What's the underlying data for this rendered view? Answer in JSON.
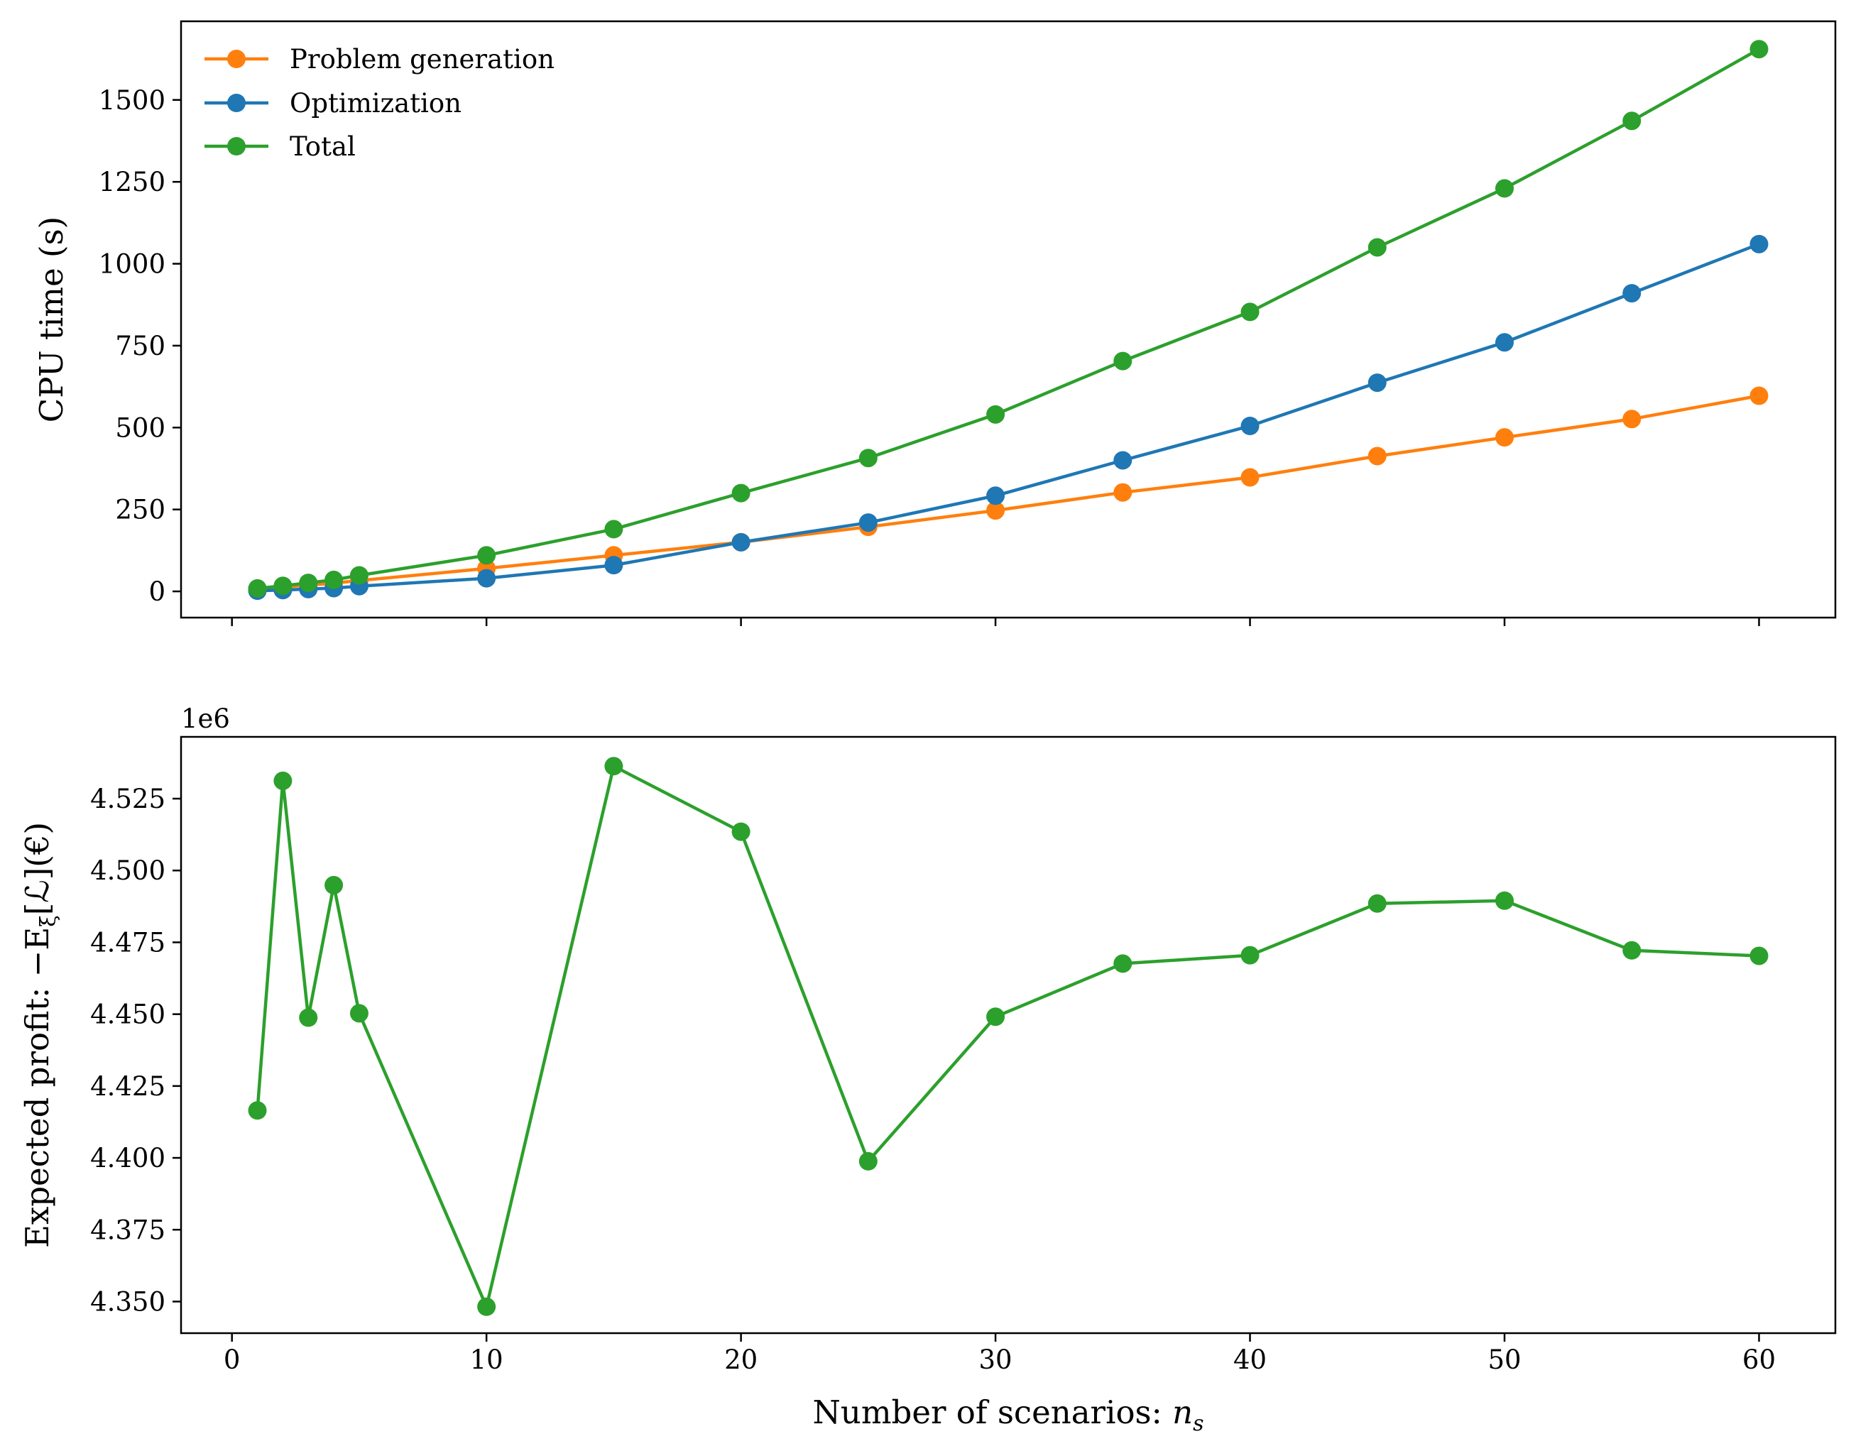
{
  "chart_data": [
    {
      "type": "line",
      "ylabel": "CPU time (s)",
      "xlabel": "",
      "x": [
        1,
        2,
        3,
        4,
        5,
        10,
        15,
        20,
        25,
        30,
        35,
        40,
        45,
        50,
        55,
        60
      ],
      "xlim": [
        -2,
        63
      ],
      "ylim": [
        -80,
        1740
      ],
      "xticks": [
        "0",
        "10",
        "20",
        "30",
        "40",
        "50",
        "60"
      ],
      "xtick_values": [
        0,
        10,
        20,
        30,
        40,
        50,
        60
      ],
      "xticklabels_visible": false,
      "yticks": [
        "0",
        "250",
        "500",
        "750",
        "1000",
        "1250",
        "1500"
      ],
      "ytick_values": [
        0,
        250,
        500,
        750,
        1000,
        1250,
        1500
      ],
      "legend_position": "top-left",
      "series": [
        {
          "name": "Problem generation",
          "color": "#ff7f0e",
          "values": [
            7,
            13,
            19,
            25,
            33,
            70,
            110,
            150,
            197,
            247,
            302,
            348,
            413,
            470,
            526,
            597
          ]
        },
        {
          "name": "Optimization",
          "color": "#1f77b4",
          "values": [
            2,
            4,
            7,
            10,
            16,
            40,
            80,
            150,
            210,
            292,
            400,
            505,
            637,
            760,
            910,
            1060
          ]
        },
        {
          "name": "Total",
          "color": "#2ca02c",
          "values": [
            9,
            17,
            26,
            35,
            49,
            110,
            190,
            300,
            407,
            540,
            703,
            853,
            1050,
            1230,
            1436,
            1655
          ]
        }
      ]
    },
    {
      "type": "line",
      "ylabel": "Expected profit: −E",
      "ylabel_subscript": "ξ",
      "ylabel_suffix": "[ℒ](€)",
      "xlabel": "Number of scenarios: ",
      "xlabel_math": "n",
      "xlabel_subscript": "s",
      "offset_text": "1e6",
      "x": [
        1,
        2,
        3,
        4,
        5,
        10,
        15,
        20,
        25,
        30,
        35,
        40,
        45,
        50,
        55,
        60
      ],
      "xlim": [
        -2,
        63
      ],
      "ylim": [
        4.339,
        4.5465
      ],
      "xticks": [
        "0",
        "10",
        "20",
        "30",
        "40",
        "50",
        "60"
      ],
      "xtick_values": [
        0,
        10,
        20,
        30,
        40,
        50,
        60
      ],
      "yticks": [
        "4.350",
        "4.375",
        "4.400",
        "4.425",
        "4.450",
        "4.475",
        "4.500",
        "4.525"
      ],
      "ytick_values": [
        4.35,
        4.375,
        4.4,
        4.425,
        4.45,
        4.475,
        4.5,
        4.525
      ],
      "series": [
        {
          "name": "Expected profit",
          "color": "#2ca02c",
          "values": [
            4.4165,
            4.5312,
            4.4488,
            4.4949,
            4.4503,
            4.3482,
            4.5363,
            4.5135,
            4.3988,
            4.4491,
            4.4676,
            4.4705,
            4.4885,
            4.4895,
            4.4722,
            4.4703
          ]
        }
      ]
    }
  ]
}
